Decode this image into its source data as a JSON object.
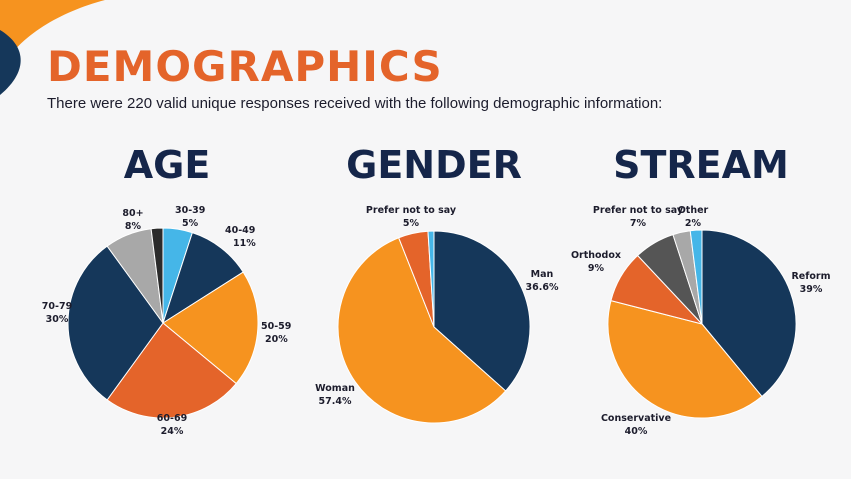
{
  "header": {
    "title": "DEMOGRAPHICS",
    "subtitle": "There were 220 valid unique responses received with the following demographic information:"
  },
  "colors": {
    "navy": "#15375a",
    "orange": "#f6931f",
    "dark_orange": "#e4642a",
    "gray": "#a8a8a8",
    "dark_gray": "#555555",
    "light_blue": "#45b6e8",
    "black": "#2b2b2b"
  },
  "chart_data": [
    {
      "type": "pie",
      "title": "AGE",
      "slices": [
        {
          "label": "30-39",
          "value": 5,
          "display": "5%",
          "color": "#45b6e8"
        },
        {
          "label": "40-49",
          "value": 11,
          "display": "11%",
          "color": "#15375a"
        },
        {
          "label": "50-59",
          "value": 20,
          "display": "20%",
          "color": "#f6931f"
        },
        {
          "label": "60-69",
          "value": 24,
          "display": "24%",
          "color": "#e4642a"
        },
        {
          "label": "70-79",
          "value": 30,
          "display": "30%",
          "color": "#15375a"
        },
        {
          "label": "80+",
          "value": 8,
          "display": "8%",
          "color": "#a8a8a8"
        },
        {
          "label": "",
          "value": 2,
          "display": "",
          "color": "#2b2b2b"
        }
      ]
    },
    {
      "type": "pie",
      "title": "GENDER",
      "slices": [
        {
          "label": "Man",
          "value": 36.6,
          "display": "36.6%",
          "color": "#15375a"
        },
        {
          "label": "Woman",
          "value": 57.4,
          "display": "57.4%",
          "color": "#f6931f"
        },
        {
          "label": "Prefer not to say",
          "value": 5,
          "display": "5%",
          "color": "#e4642a"
        },
        {
          "label": "",
          "value": 1,
          "display": "",
          "color": "#45b6e8"
        }
      ]
    },
    {
      "type": "pie",
      "title": "STREAM",
      "slices": [
        {
          "label": "Reform",
          "value": 39,
          "display": "39%",
          "color": "#15375a"
        },
        {
          "label": "Conservative",
          "value": 40,
          "display": "40%",
          "color": "#f6931f"
        },
        {
          "label": "Orthodox",
          "value": 9,
          "display": "9%",
          "color": "#e4642a"
        },
        {
          "label": "Prefer not to say",
          "value": 7,
          "display": "7%",
          "color": "#555555"
        },
        {
          "label": "",
          "value": 3,
          "display": "",
          "color": "#a8a8a8"
        },
        {
          "label": "Other",
          "value": 2,
          "display": "2%",
          "color": "#45b6e8"
        }
      ]
    }
  ]
}
